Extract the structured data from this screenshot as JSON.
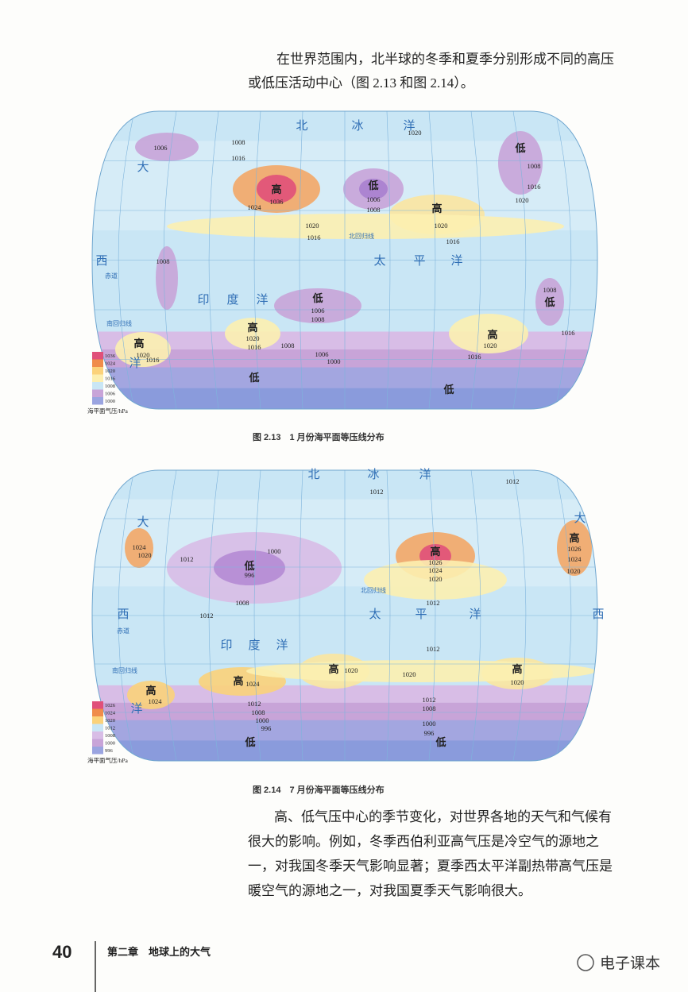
{
  "paragraph_top": [
    "在世界范围内，北半球的冬季和夏季分别形成不同的高压",
    "或低压活动中心（图 2.13 和图 2.14）。"
  ],
  "figures": [
    {
      "caption": "图 2.13　1 月份海平面等压线分布",
      "legend": {
        "title": "海平面气压/hPa",
        "values": [
          "1036",
          "1024",
          "1020",
          "1016",
          "1008",
          "1006",
          "1000"
        ]
      },
      "labels": [
        "北",
        "冰",
        "洋",
        "大",
        "西",
        "洋",
        "印",
        "度",
        "洋",
        "太",
        "平",
        "洋",
        "高",
        "1036",
        "1024",
        "1008",
        "1016",
        "1006",
        "低",
        "1006",
        "1008",
        "高",
        "1020",
        "1016",
        "1020",
        "1016",
        "低",
        "1008",
        "1016",
        "1020",
        "1008",
        "低",
        "1006",
        "1008",
        "高",
        "1020",
        "1016",
        "1008",
        "1006",
        "1000",
        "高",
        "1020",
        "1016",
        "高",
        "1020",
        "1016",
        "1008",
        "低",
        "1016",
        "低",
        "低",
        "1020",
        "北回归线",
        "赤道",
        "南回归线"
      ]
    },
    {
      "caption": "图 2.14　7 月份海平面等压线分布",
      "legend": {
        "title": "海平面气压/hPa",
        "values": [
          "1026",
          "1024",
          "1020",
          "1012",
          "1008",
          "1000",
          "996"
        ]
      },
      "labels": [
        "北",
        "冰",
        "洋",
        "大",
        "大",
        "西",
        "西",
        "洋",
        "印",
        "度",
        "洋",
        "太",
        "平",
        "洋",
        "高",
        "1026",
        "1024",
        "1020",
        "1012",
        "1012",
        "低",
        "996",
        "1000",
        "1012",
        "1008",
        "1012",
        "1012",
        "1012",
        "高",
        "1026",
        "1024",
        "1020",
        "1024",
        "1020",
        "高",
        "1020",
        "1020",
        "高",
        "1020",
        "高",
        "1024",
        "高",
        "1024",
        "1012",
        "1008",
        "1000",
        "996",
        "1012",
        "1008",
        "1000",
        "996",
        "低",
        "低",
        "北回归线",
        "赤道",
        "南回归线"
      ]
    }
  ],
  "paragraph_bottom": [
    "高、低气压中心的季节变化，对世界各地的天气和气候有",
    "很大的影响。例如，冬季西伯利亚高气压是冷空气的源地之",
    "一，对我国冬季天气影响显著；夏季西太平洋副热带高气压是",
    "暖空气的源地之一，对我国夏季天气影响很大。"
  ],
  "footer": {
    "page": "40",
    "chapter": "第二章　地球上的大气",
    "watermark": "电子课本"
  }
}
